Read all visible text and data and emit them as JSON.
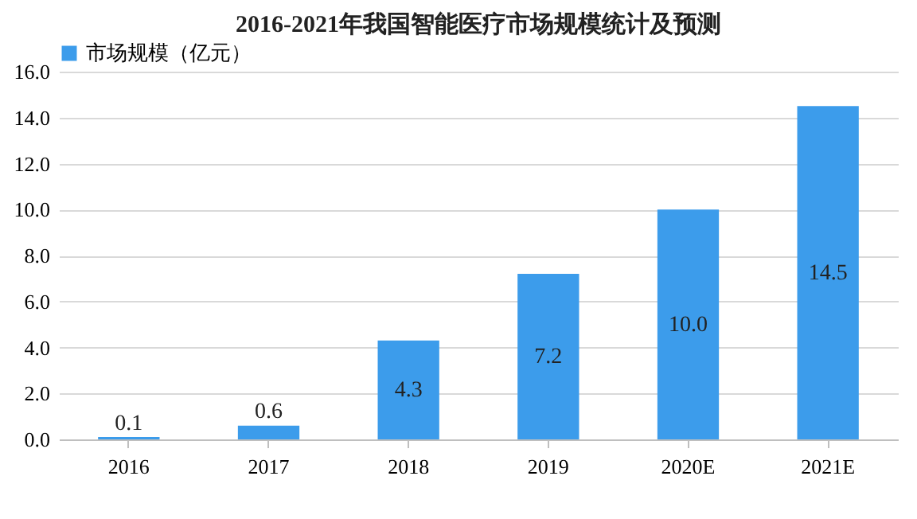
{
  "chart_data": {
    "type": "bar",
    "title": "2016-2021年我国智能医疗市场规模统计及预测",
    "categories": [
      "2016",
      "2017",
      "2018",
      "2019",
      "2020E",
      "2021E"
    ],
    "series": [
      {
        "name": "市场规模（亿元）",
        "color": "#3c9ceb",
        "values": [
          0.1,
          0.6,
          4.3,
          7.2,
          10.0,
          14.5
        ]
      }
    ],
    "value_labels": [
      "0.1",
      "0.6",
      "4.3",
      "7.2",
      "10.0",
      "14.5"
    ],
    "ylim": [
      0,
      16
    ],
    "yticks": [
      {
        "value": 0,
        "label": "0.0"
      },
      {
        "value": 2,
        "label": "2.0"
      },
      {
        "value": 4,
        "label": "4.0"
      },
      {
        "value": 6,
        "label": "6.0"
      },
      {
        "value": 8,
        "label": "8.0"
      },
      {
        "value": 10,
        "label": "10.0"
      },
      {
        "value": 12,
        "label": "12.0"
      },
      {
        "value": 14,
        "label": "14.0"
      },
      {
        "value": 16,
        "label": "16.0"
      }
    ],
    "grid": "y",
    "legend": "top"
  }
}
